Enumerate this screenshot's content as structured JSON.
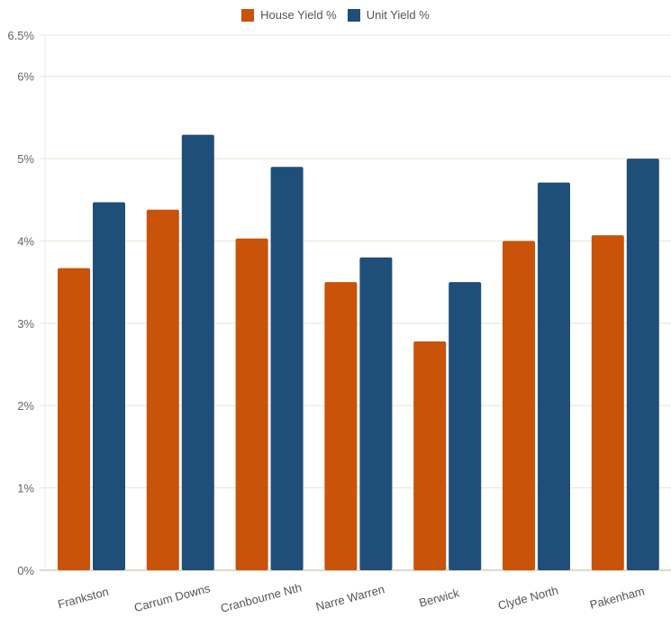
{
  "chart_data": {
    "type": "bar",
    "title": "",
    "xlabel": "",
    "ylabel": "",
    "categories": [
      "Frankston",
      "Carrum Downs",
      "Cranbourne Nth",
      "Narre Warren",
      "Berwick",
      "Clyde North",
      "Pakenham"
    ],
    "series": [
      {
        "name": "House Yield %",
        "color": "#c85309",
        "values": [
          3.67,
          4.38,
          4.03,
          3.5,
          2.78,
          4.0,
          4.07
        ]
      },
      {
        "name": "Unit Yield %",
        "color": "#1f4e79",
        "values": [
          4.47,
          5.29,
          4.9,
          3.8,
          3.5,
          4.71,
          5.0
        ]
      }
    ],
    "ylim": [
      0,
      6.5
    ],
    "yticks": [
      0,
      1,
      2,
      3,
      4,
      5,
      6,
      6.5
    ],
    "ytick_labels": [
      "0%",
      "1%",
      "2%",
      "3%",
      "4%",
      "5%",
      "6%",
      "6.5%"
    ],
    "grid": true,
    "legend_position": "top-center",
    "gridline_color": "#eee3d0"
  }
}
